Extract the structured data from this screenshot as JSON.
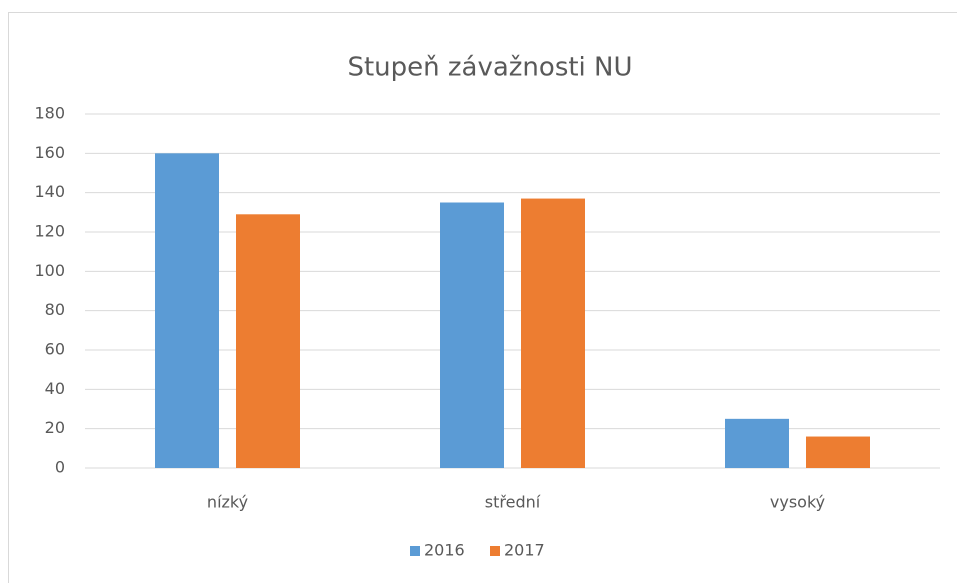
{
  "chart_data": {
    "type": "bar",
    "title": "Stupeň závažnosti NU",
    "categories": [
      "nízký",
      "střední",
      "vysoký"
    ],
    "series": [
      {
        "name": "2016",
        "color": "#5b9bd5",
        "values": [
          160,
          135,
          25
        ]
      },
      {
        "name": "2017",
        "color": "#ed7d31",
        "values": [
          129,
          137,
          16
        ]
      }
    ],
    "ylim": [
      0,
      180
    ],
    "yticks": [
      0,
      20,
      40,
      60,
      80,
      100,
      120,
      140,
      160,
      180
    ],
    "grid": true,
    "legend": "bottom"
  }
}
